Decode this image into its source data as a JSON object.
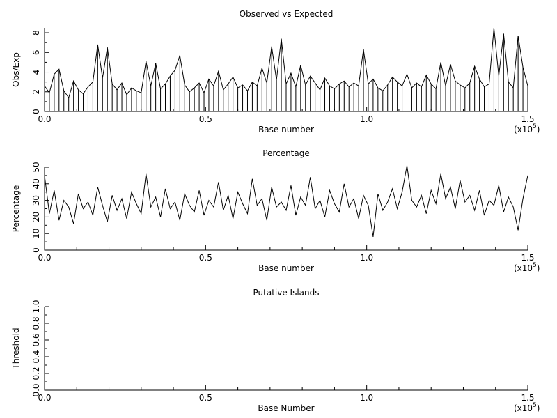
{
  "chart_data": [
    {
      "id": "obs-exp",
      "type": "line",
      "title": "Observed vs Expected",
      "xlabel": "Base number",
      "ylabel": "Obs/Exp",
      "xlim": [
        0,
        150000
      ],
      "ylim": [
        0,
        8.5
      ],
      "x_ticks": [
        "0.0",
        "0.5",
        "1.0",
        "1.5"
      ],
      "x_tick_values": [
        0,
        50000,
        100000,
        150000
      ],
      "y_ticks": [
        "0",
        "2",
        "4",
        "6",
        "8"
      ],
      "y_tick_values": [
        0,
        2,
        4,
        6,
        8
      ],
      "x_scale_note": "(x10",
      "x_scale_exp": "5",
      "x_scale_close": ")",
      "series": [
        {
          "x": [
            0,
            1500,
            3000,
            4500,
            6000,
            7500,
            9000,
            10500,
            12000,
            13500,
            15000,
            16500,
            18000,
            19500,
            21000,
            22500,
            24000,
            25500,
            27000,
            28500,
            30000,
            31500,
            33000,
            34500,
            36000,
            37500,
            39000,
            40500,
            42000,
            43500,
            45000,
            46500,
            48000,
            49500,
            51000,
            52500,
            54000,
            55500,
            57000,
            58500,
            60000,
            61500,
            63000,
            64500,
            66000,
            67500,
            69000,
            70500,
            72000,
            73500,
            75000,
            76500,
            78000,
            79500,
            81000,
            82500,
            84000,
            85500,
            87000,
            88500,
            90000,
            91500,
            93000,
            94500,
            96000,
            97500,
            99000,
            100500,
            102000,
            103500,
            105000,
            106500,
            108000,
            109500,
            111000,
            112500,
            114000,
            115500,
            117000,
            118500,
            120000,
            121500,
            123000,
            124500,
            126000,
            127500,
            129000,
            130500,
            132000,
            133500,
            135000,
            136500,
            138000,
            139500,
            141000,
            142500,
            144000,
            145500,
            147000,
            148500,
            150000
          ],
          "values": [
            2.6,
            1.9,
            3.8,
            4.3,
            2.1,
            1.4,
            3.1,
            2.2,
            1.8,
            2.5,
            3.0,
            6.8,
            3.4,
            6.5,
            2.8,
            2.2,
            2.9,
            1.7,
            2.4,
            2.1,
            1.9,
            5.1,
            2.6,
            4.9,
            2.3,
            2.8,
            3.6,
            4.2,
            5.7,
            2.7,
            2.0,
            2.4,
            2.9,
            1.9,
            3.3,
            2.6,
            4.1,
            2.2,
            2.8,
            3.5,
            2.4,
            2.7,
            2.1,
            3.0,
            2.6,
            4.4,
            2.9,
            6.6,
            3.2,
            7.4,
            2.8,
            3.9,
            2.5,
            4.7,
            2.7,
            3.6,
            2.9,
            2.2,
            3.4,
            2.6,
            2.3,
            2.8,
            3.1,
            2.5,
            2.9,
            2.6,
            6.3,
            2.8,
            3.3,
            2.4,
            2.1,
            2.7,
            3.5,
            3.0,
            2.6,
            3.8,
            2.4,
            2.9,
            2.5,
            3.7,
            2.8,
            2.3,
            5.0,
            2.6,
            4.8,
            3.1,
            2.7,
            2.4,
            2.9,
            4.6,
            3.3,
            2.5,
            2.8,
            8.5,
            3.6,
            7.9,
            3.0,
            2.4,
            7.7,
            4.5,
            2.6
          ]
        }
      ]
    },
    {
      "id": "percentage",
      "type": "line",
      "title": "Percentage",
      "xlabel": "Base number",
      "ylabel": "Percentage",
      "xlim": [
        0,
        150000
      ],
      "ylim": [
        0,
        50
      ],
      "x_ticks": [
        "0.0",
        "0.5",
        "1.0",
        "1.5"
      ],
      "x_tick_values": [
        0,
        50000,
        100000,
        150000
      ],
      "y_ticks": [
        "0",
        "10",
        "20",
        "30",
        "40",
        "50"
      ],
      "y_tick_values": [
        0,
        10,
        20,
        30,
        40,
        50
      ],
      "x_scale_note": "(x10",
      "x_scale_exp": "5",
      "x_scale_close": ")",
      "series": [
        {
          "x": [
            0,
            1500,
            3000,
            4500,
            6000,
            7500,
            9000,
            10500,
            12000,
            13500,
            15000,
            16500,
            18000,
            19500,
            21000,
            22500,
            24000,
            25500,
            27000,
            28500,
            30000,
            31500,
            33000,
            34500,
            36000,
            37500,
            39000,
            40500,
            42000,
            43500,
            45000,
            46500,
            48000,
            49500,
            51000,
            52500,
            54000,
            55500,
            57000,
            58500,
            60000,
            61500,
            63000,
            64500,
            66000,
            67500,
            69000,
            70500,
            72000,
            73500,
            75000,
            76500,
            78000,
            79500,
            81000,
            82500,
            84000,
            85500,
            87000,
            88500,
            90000,
            91500,
            93000,
            94500,
            96000,
            97500,
            99000,
            100500,
            102000,
            103500,
            105000,
            106500,
            108000,
            109500,
            111000,
            112500,
            114000,
            115500,
            117000,
            118500,
            120000,
            121500,
            123000,
            124500,
            126000,
            127500,
            129000,
            130500,
            132000,
            133500,
            135000,
            136500,
            138000,
            139500,
            141000,
            142500,
            144000,
            145500,
            147000,
            148500,
            150000
          ],
          "values": [
            45,
            22,
            36,
            18,
            30,
            26,
            16,
            34,
            25,
            29,
            21,
            38,
            27,
            17,
            33,
            24,
            31,
            19,
            35,
            28,
            22,
            46,
            26,
            32,
            20,
            37,
            25,
            29,
            18,
            34,
            27,
            23,
            36,
            21,
            30,
            26,
            41,
            24,
            33,
            19,
            35,
            28,
            22,
            43,
            27,
            31,
            18,
            38,
            26,
            29,
            24,
            39,
            21,
            32,
            27,
            44,
            25,
            30,
            20,
            36,
            28,
            23,
            40,
            26,
            31,
            19,
            33,
            27,
            8,
            34,
            24,
            29,
            37,
            25,
            35,
            51,
            30,
            26,
            33,
            22,
            36,
            28,
            46,
            31,
            38,
            25,
            42,
            29,
            33,
            24,
            36,
            21,
            30,
            27,
            39,
            23,
            32,
            26,
            12,
            31,
            45
          ]
        }
      ]
    },
    {
      "id": "islands",
      "type": "line",
      "title": "Putative Islands",
      "xlabel": "Base Number",
      "ylabel": "Threshold",
      "xlim": [
        0,
        150000
      ],
      "ylim": [
        0,
        1
      ],
      "x_ticks": [
        "0.0",
        "0.5",
        "1.0",
        "1.5"
      ],
      "x_tick_values": [
        0,
        50000,
        100000,
        150000
      ],
      "y_ticks": [
        "0.0",
        "0.2",
        "0.4",
        "0.6",
        "0.8",
        "1.0"
      ],
      "y_tick_values": [
        0,
        0.2,
        0.4,
        0.6,
        0.8,
        1.0
      ],
      "x_scale_note": "(x10",
      "x_scale_exp": "5",
      "x_scale_close": ")",
      "series": []
    }
  ]
}
